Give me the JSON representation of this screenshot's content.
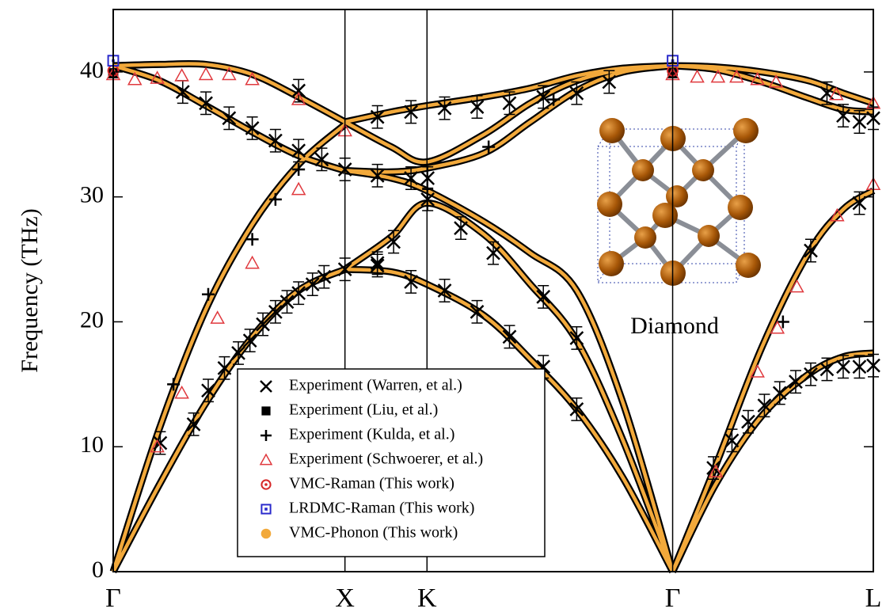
{
  "chart_data": {
    "type": "line",
    "ylabel": "Frequency (THz)",
    "xlim": [
      0,
      3.28
    ],
    "ylim": [
      0,
      45
    ],
    "xticks": [
      {
        "value": 0,
        "label": "Γ"
      },
      {
        "value": 1,
        "label": "X"
      },
      {
        "value": 1.354,
        "label": "K"
      },
      {
        "value": 2.414,
        "label": "Γ"
      },
      {
        "value": 3.28,
        "label": "L"
      }
    ],
    "yticks": [
      0,
      10,
      20,
      30,
      40
    ],
    "grid": "x",
    "legend": "lower center",
    "inset_label": "Diamond",
    "series": [
      {
        "name": "Experiment (Warren, et al.)",
        "marker": "x",
        "color": "#000000",
        "error": 0.9,
        "x": [
          0.203,
          0.347,
          0.41,
          0.48,
          0.54,
          0.59,
          0.646,
          0.7,
          0.75,
          0.8,
          0.86,
          0.91,
          1.0,
          1.14,
          1.285,
          1.43,
          1.57,
          1.71,
          1.856,
          2.0,
          1.357,
          1.5,
          1.64,
          1.856,
          2.0,
          0.3,
          0.4,
          0.5,
          0.6,
          0.7,
          0.8,
          0.9,
          1.0,
          1.14,
          1.285,
          1.357,
          0.8,
          1.14,
          1.285,
          1.43,
          1.57,
          1.71,
          1.856,
          2.0,
          2.14,
          1.14,
          1.21,
          2.59,
          2.67,
          2.74,
          2.81,
          2.876,
          2.945,
          3.01,
          3.08,
          3.15,
          3.22,
          3.28,
          3.08,
          3.15,
          3.22,
          3.28,
          3.01,
          3.22
        ],
        "values": [
          10.3,
          11.8,
          14.5,
          16.3,
          17.5,
          18.5,
          19.8,
          20.8,
          21.6,
          22.3,
          23.0,
          23.6,
          24.2,
          24.7,
          23.2,
          22.5,
          20.8,
          18.8,
          16.4,
          13.0,
          29.8,
          27.5,
          25.5,
          22.0,
          18.7,
          38.4,
          37.5,
          36.3,
          35.5,
          34.5,
          33.7,
          33.0,
          32.2,
          31.7,
          31.5,
          31.5,
          38.5,
          36.4,
          36.8,
          37.1,
          37.2,
          37.5,
          38.0,
          38.3,
          39.2,
          24.5,
          26.4,
          8.3,
          10.5,
          12.0,
          13.3,
          14.3,
          15.2,
          15.8,
          16.2,
          16.4,
          16.4,
          16.5,
          38.3,
          36.5,
          36.0,
          36.3,
          25.7,
          29.5
        ]
      },
      {
        "name": "Experiment (Liu, et al.)",
        "marker": "square",
        "color": "#000000",
        "x": [
          0,
          2.414
        ],
        "values": [
          39.9,
          39.9
        ]
      },
      {
        "name": "Experiment (Kulda, et al.)",
        "marker": "plus",
        "color": "#000000",
        "x": [
          0.26,
          0.41,
          0.6,
          0.7,
          0.8,
          1.62,
          1.9,
          2.89
        ],
        "values": [
          15.0,
          22.2,
          26.6,
          29.8,
          32.2,
          34.0,
          37.8,
          20.0
        ]
      },
      {
        "name": "Experiment (Schwoerer, et al.)",
        "marker": "triangle",
        "color": "#e0393e",
        "x": [
          0.19,
          0.296,
          0.45,
          0.6,
          0.8,
          0.093,
          0.19,
          0.296,
          0.4,
          0.5,
          0.6,
          0.8,
          1.0,
          2.6,
          2.78,
          2.866,
          2.95,
          3.124,
          3.28,
          2.52,
          2.61,
          2.69,
          2.78,
          2.86,
          3.12,
          3.28,
          0,
          2.414
        ],
        "values": [
          10.0,
          14.3,
          20.3,
          24.7,
          30.6,
          39.4,
          39.5,
          39.7,
          39.8,
          39.8,
          39.4,
          37.8,
          35.3,
          8.0,
          16.0,
          19.5,
          22.8,
          28.5,
          31.0,
          39.6,
          39.6,
          39.6,
          39.4,
          39.2,
          38.2,
          37.5,
          39.8,
          39.8
        ]
      },
      {
        "name": "VMC-Raman (This work)",
        "marker": "circle-dot",
        "color": "#d62728",
        "x": [
          0,
          2.414
        ],
        "values": [
          40.1,
          40.1
        ]
      },
      {
        "name": "LRDMC-Raman (This work)",
        "marker": "square-dot",
        "color": "#2a2acc",
        "x": [
          0,
          2.414
        ],
        "values": [
          40.9,
          40.9
        ]
      },
      {
        "name": "VMC-Phonon (This work)",
        "marker": "line",
        "color": "#f2a93b",
        "x": [
          0,
          0.2,
          0.4,
          0.6,
          0.8,
          1,
          null,
          0,
          0.2,
          0.4,
          0.6,
          0.8,
          1,
          null,
          0,
          0.2,
          0.4,
          0.6,
          0.8,
          1,
          null,
          0,
          0.2,
          0.4,
          0.6,
          0.8,
          1,
          null,
          1,
          1.2,
          1.354,
          1.6,
          1.8,
          2.0,
          2.2,
          2.414,
          null,
          1,
          1.2,
          1.354,
          1.6,
          1.8,
          2.0,
          2.2,
          2.414,
          null,
          1,
          1.2,
          1.354,
          1.6,
          1.8,
          2.0,
          2.2,
          2.414,
          null,
          1,
          1.2,
          1.354,
          1.6,
          1.8,
          2.0,
          2.2,
          2.414,
          null,
          1,
          1.2,
          1.354,
          1.6,
          1.8,
          2.0,
          2.2,
          2.414,
          null,
          1,
          1.2,
          1.354,
          1.6,
          1.8,
          2.0,
          2.2,
          2.414,
          null,
          2.414,
          2.6,
          2.8,
          3.0,
          3.15,
          3.28,
          null,
          2.414,
          2.6,
          2.8,
          3.0,
          3.15,
          3.28,
          null,
          2.414,
          2.6,
          2.8,
          3.0,
          3.15,
          3.28,
          null,
          2.414,
          2.6,
          2.8,
          3.0,
          3.15,
          3.28
        ],
        "values": [
          0,
          7,
          13.5,
          18.8,
          22.5,
          24.2,
          null,
          0,
          11.5,
          21,
          27.8,
          32.6,
          35.8,
          null,
          40.5,
          39.3,
          37.3,
          35.2,
          33.3,
          32.1,
          null,
          40.5,
          40.6,
          40.6,
          39.8,
          38,
          36,
          null,
          24.2,
          24,
          23,
          20.5,
          17,
          13,
          7.5,
          0,
          null,
          24.2,
          26.8,
          29.5,
          27,
          23,
          18.5,
          10.5,
          0,
          null,
          32.1,
          31.5,
          30.5,
          28,
          25.5,
          22.5,
          13.5,
          0,
          null,
          32.1,
          32,
          32.3,
          33.5,
          36,
          38.5,
          40,
          40.5,
          null,
          36,
          34,
          32.8,
          35,
          37.5,
          39.3,
          40.2,
          40.5,
          null,
          36,
          36.8,
          37.3,
          38,
          38.7,
          39.7,
          40.3,
          40.5,
          null,
          0,
          7,
          12.5,
          15.8,
          17.2,
          17.5,
          null,
          0,
          8.5,
          18,
          25.5,
          29,
          30.5,
          null,
          40.5,
          40.2,
          39.2,
          37.9,
          37,
          36.8,
          null,
          40.5,
          40.4,
          40,
          39.3,
          38.3,
          37.5
        ]
      }
    ]
  }
}
